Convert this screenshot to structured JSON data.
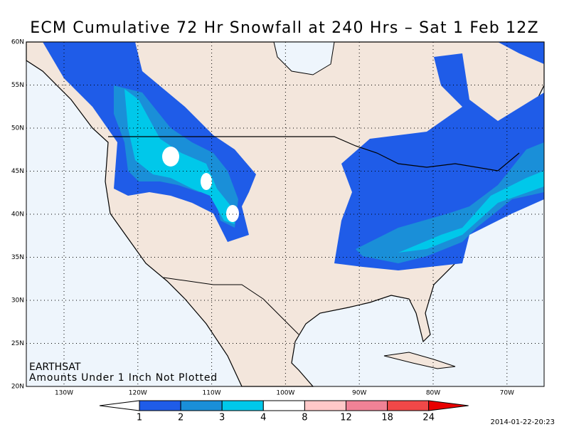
{
  "map": {
    "title": "ECM Cumulative 72 Hr Snowfall at 240 Hrs – Sat 1 Feb 12Z",
    "latitude_labels": [
      "60N",
      "55N",
      "50N",
      "45N",
      "40N",
      "35N",
      "30N",
      "25N",
      "20N"
    ],
    "longitude_labels": [
      "130W",
      "120W",
      "110W",
      "100W",
      "90W",
      "80W",
      "70W"
    ],
    "annotations": [
      "EARTHSAT",
      "Amounts Under 1 Inch Not Plotted"
    ],
    "colorbar": {
      "levels": [
        1,
        2,
        3,
        4,
        8,
        12,
        18,
        24
      ],
      "colors": [
        "#ffffff",
        "#1f5ce8",
        "#1a8fd8",
        "#00c8ea",
        "#ffffff",
        "#ffc8c8",
        "#f08296",
        "#f04848",
        "#e80000"
      ]
    },
    "timestamp": "2014-01-22-20:23"
  }
}
